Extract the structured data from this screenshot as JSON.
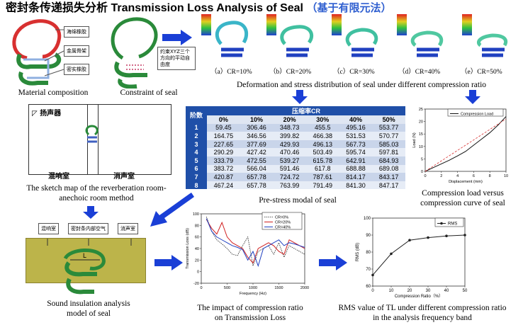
{
  "title": {
    "cn": "密封条传递损失分析",
    "en": "Transmission Loss Analysis of Seal",
    "cn2": "（基于有限元法）"
  },
  "material_composition": {
    "labels": [
      "海绵橡胶",
      "金属骨架",
      "密实橡胶"
    ],
    "caption": "Material composition"
  },
  "constraint": {
    "note": "约束XYZ三个方向的平动自由度",
    "caption": "Constraint of seal"
  },
  "deformation": {
    "labels": [
      "（a）CR=10%",
      "（b）CR=20%",
      "（c）CR=30%",
      "（d）CR=40%",
      "（e）CR=50%"
    ],
    "caption": "Deformation and stress distribution of seal under different compression ratio"
  },
  "sketch": {
    "speaker_label": "扬声器",
    "reverb_room": "混响室",
    "anechoic_room": "消声室",
    "caption_line1": "The sketch map of the reverberation room-",
    "caption_line2": "anechoic room method"
  },
  "modal_table": {
    "corner": "阶数",
    "group_header": "压缩率CR",
    "columns": [
      "0%",
      "10%",
      "20%",
      "30%",
      "40%",
      "50%"
    ],
    "rows": [
      {
        "order": "1",
        "values": [
          "59.45",
          "306.46",
          "348.73",
          "455.5",
          "495.16",
          "553.77"
        ]
      },
      {
        "order": "2",
        "values": [
          "164.75",
          "346.56",
          "399.82",
          "466.38",
          "531.53",
          "570.77"
        ]
      },
      {
        "order": "3",
        "values": [
          "227.65",
          "377.69",
          "429.93",
          "496.13",
          "567.73",
          "585.03"
        ]
      },
      {
        "order": "4",
        "values": [
          "290.29",
          "427.42",
          "470.46",
          "503.49",
          "595.74",
          "597.81"
        ]
      },
      {
        "order": "5",
        "values": [
          "333.79",
          "472.55",
          "539.27",
          "615.78",
          "642.91",
          "684.93"
        ]
      },
      {
        "order": "6",
        "values": [
          "383.72",
          "566.04",
          "591.46",
          "617.8",
          "688.88",
          "689.08"
        ]
      },
      {
        "order": "7",
        "values": [
          "420.87",
          "657.78",
          "724.72",
          "787.61",
          "814.17",
          "843.17"
        ]
      },
      {
        "order": "8",
        "values": [
          "467.24",
          "657.78",
          "763.99",
          "791.49",
          "841.30",
          "847.17"
        ]
      }
    ],
    "caption": "Pre-stress modal of seal"
  },
  "compression_chart": {
    "legend": "Compression Load",
    "ylabel": "Load (N)",
    "xlabel": "Displacement (mm)",
    "caption_line1": "Compression load versus",
    "caption_line2": "compression curve of seal"
  },
  "sound_model": {
    "labels": [
      "混响室",
      "密封条内部空气",
      "消声室"
    ],
    "dim_label": "L",
    "caption_line1": "Sound insulation analysis",
    "caption_line2": "model of seal"
  },
  "chart_data": [
    {
      "type": "line",
      "title": "",
      "xlabel": "Displacement (mm)",
      "ylabel": "Load (N)",
      "xlim": [
        0,
        10
      ],
      "ylim": [
        0,
        25
      ],
      "x_ticks": [
        "0",
        "2",
        "4",
        "6",
        "8",
        "10"
      ],
      "y_ticks": [
        "0",
        "5",
        "10",
        "15",
        "20",
        "25"
      ],
      "series": [
        {
          "name": "Compression Load",
          "x": [
            0,
            1,
            2,
            3,
            4,
            5,
            6,
            7,
            8,
            9,
            10
          ],
          "y": [
            0,
            1.5,
            3,
            4.5,
            6.2,
            8,
            10.5,
            13,
            15.5,
            18.5,
            22
          ]
        }
      ],
      "legend": "top-right"
    },
    {
      "type": "line",
      "title": "",
      "xlabel": "Frequency (Hz)",
      "ylabel": "Transmission Loss (dB)",
      "xlim": [
        0,
        2000
      ],
      "ylim": [
        -20,
        100
      ],
      "x_ticks": [
        "0",
        "500",
        "1000",
        "1500",
        "2000"
      ],
      "y_ticks": [
        "-20",
        "0",
        "20",
        "40",
        "60",
        "80",
        "100"
      ],
      "series": [
        {
          "name": "CR=0%",
          "x": [
            100,
            200,
            300,
            400,
            500,
            600,
            700,
            800,
            900,
            1000,
            1100,
            1200,
            1300,
            1400,
            1500,
            1600,
            1700,
            1800,
            1900,
            2000
          ],
          "y": [
            95,
            70,
            55,
            48,
            40,
            30,
            28,
            45,
            60,
            10,
            35,
            40,
            45,
            30,
            50,
            25,
            45,
            40,
            35,
            30
          ]
        },
        {
          "name": "CR=20%",
          "x": [
            100,
            200,
            300,
            400,
            500,
            600,
            700,
            800,
            900,
            1000,
            1100,
            1200,
            1300,
            1400,
            1500,
            1600,
            1700,
            1800,
            1900,
            2000
          ],
          "y": [
            90,
            75,
            65,
            85,
            60,
            50,
            45,
            40,
            25,
            15,
            40,
            45,
            50,
            45,
            35,
            30,
            55,
            50,
            45,
            40
          ]
        },
        {
          "name": "CR=40%",
          "x": [
            100,
            200,
            300,
            400,
            500,
            600,
            700,
            800,
            900,
            1000,
            1100,
            1200,
            1300,
            1400,
            1500,
            1600,
            1700,
            1800,
            1900,
            2000
          ],
          "y": [
            92,
            70,
            60,
            55,
            50,
            45,
            42,
            38,
            20,
            35,
            10,
            40,
            45,
            50,
            55,
            45,
            50,
            48,
            45,
            42
          ]
        }
      ],
      "legend": "top-right"
    },
    {
      "type": "line",
      "title": "",
      "xlabel": "Compression Ratio（%）",
      "ylabel": "RMS (dB)",
      "xlim": [
        0,
        50
      ],
      "ylim": [
        60,
        100
      ],
      "x_ticks": [
        "0",
        "10",
        "20",
        "30",
        "40",
        "50"
      ],
      "y_ticks": [
        "60",
        "70",
        "80",
        "90",
        "100"
      ],
      "series": [
        {
          "name": "RMS",
          "x": [
            0,
            10,
            20,
            30,
            40,
            50
          ],
          "y": [
            66.5,
            79,
            87,
            88.5,
            89.5,
            90
          ]
        }
      ],
      "legend": "top-right"
    }
  ],
  "tl_caption_line1": "The impact of compression ratio",
  "tl_caption_line2": "on Transmission Loss",
  "rms_caption_line1": "RMS value of TL under different compression ratio",
  "rms_caption_line2": "in the analysis frequency band",
  "colors": {
    "arrow": "#1a3fd6",
    "seal_green": "#2a8a3a",
    "seal_red": "#d83030",
    "table_blue": "#1f4fa8"
  }
}
